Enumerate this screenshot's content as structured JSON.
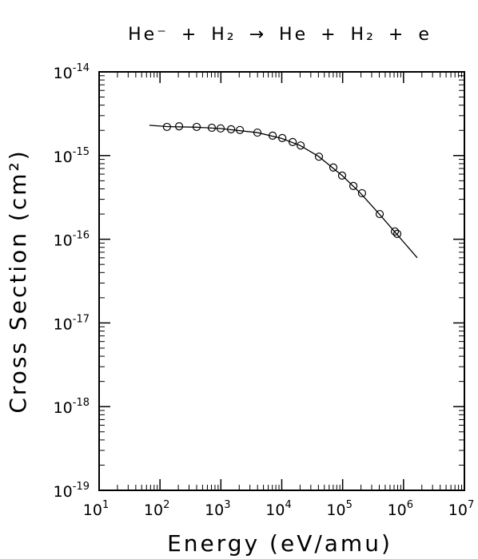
{
  "chart_data": {
    "type": "scatter",
    "title": "He⁻ + H₂ → He + H₂ + e",
    "x_label": "Energy (eV/amu)",
    "y_label": "Cross Section (cm²)",
    "xscale": "log",
    "yscale": "log",
    "xlim": [
      10,
      10000000
    ],
    "ylim": [
      1e-19,
      1e-14
    ],
    "xticks": [
      {
        "value": 10,
        "label": "10",
        "exponent": "1"
      },
      {
        "value": 100,
        "label": "10",
        "exponent": "2"
      },
      {
        "value": 1000,
        "label": "10",
        "exponent": "3"
      },
      {
        "value": 10000,
        "label": "10",
        "exponent": "4"
      },
      {
        "value": 100000,
        "label": "10",
        "exponent": "5"
      },
      {
        "value": 1000000,
        "label": "10",
        "exponent": "6"
      },
      {
        "value": 10000000,
        "label": "10",
        "exponent": "7"
      }
    ],
    "yticks": [
      {
        "value": 1e-19,
        "label": "10",
        "exponent": "-19"
      },
      {
        "value": 1e-18,
        "label": "10",
        "exponent": "-18"
      },
      {
        "value": 1e-17,
        "label": "10",
        "exponent": "-17"
      },
      {
        "value": 1e-16,
        "label": "10",
        "exponent": "-16"
      },
      {
        "value": 1e-15,
        "label": "10",
        "exponent": "-15"
      },
      {
        "value": 1e-14,
        "label": "10",
        "exponent": "-14"
      }
    ],
    "series": [
      {
        "style": "markers",
        "color": "#000000",
        "x": [
          130,
          206,
          400,
          710,
          990,
          1470,
          2050,
          3980,
          7080,
          10200,
          15100,
          20400,
          40800,
          70300,
          98000,
          150000,
          208000,
          406000,
          721000,
          789000
        ],
        "values": [
          2.2e-15,
          2.24e-15,
          2.2e-15,
          2.15e-15,
          2.11e-15,
          2.06e-15,
          2.02e-15,
          1.88e-15,
          1.73e-15,
          1.62e-15,
          1.45e-15,
          1.32e-15,
          9.7e-16,
          7.2e-16,
          5.76e-16,
          4.33e-16,
          3.55e-16,
          2e-16,
          1.24e-16,
          1.16e-16
        ]
      },
      {
        "style": "line",
        "color": "#000000",
        "x": [
          67,
          130,
          400,
          990,
          4000,
          10000,
          20000,
          40000,
          100000,
          200000,
          400000,
          800000,
          1680000
        ],
        "values": [
          2.3e-15,
          2.22e-15,
          2.18e-15,
          2.1e-15,
          1.88e-15,
          1.6e-15,
          1.32e-15,
          9.8e-16,
          5.7e-16,
          3.5e-16,
          2e-16,
          1.12e-16,
          6e-17
        ]
      }
    ]
  }
}
